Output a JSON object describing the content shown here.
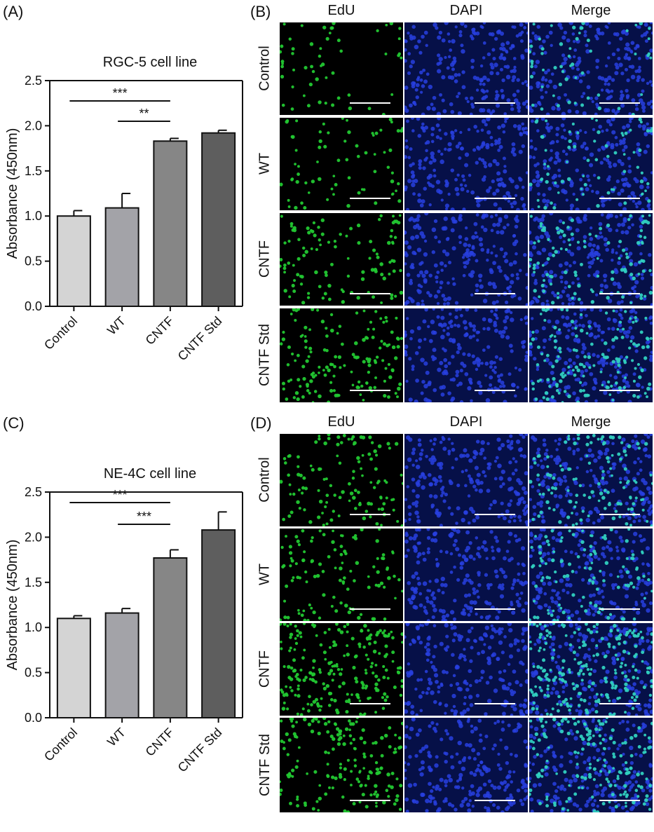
{
  "panels": {
    "a": {
      "label": "(A)"
    },
    "b": {
      "label": "(B)"
    },
    "c": {
      "label": "(C)"
    },
    "d": {
      "label": "(D)"
    }
  },
  "chart_data": [
    {
      "type": "bar",
      "title": "RGC-5 cell line",
      "ylabel": "Absorbance (450nm)",
      "xlabel": "",
      "categories": [
        "Control",
        "WT",
        "CNTF",
        "CNTF Std"
      ],
      "values": [
        1.0,
        1.09,
        1.83,
        1.92
      ],
      "errors": [
        0.06,
        0.16,
        0.03,
        0.03
      ],
      "ylim": [
        0,
        2.5
      ],
      "yticks": [
        "0.0",
        "0.5",
        "1.0",
        "1.5",
        "2.0",
        "2.5"
      ],
      "bar_colors": [
        "#d4d4d4",
        "#a3a3a8",
        "#868686",
        "#5e5e5e"
      ],
      "significance": [
        {
          "from": "Control",
          "to": "CNTF",
          "label": "***"
        },
        {
          "from": "WT",
          "to": "CNTF",
          "label": "**"
        }
      ]
    },
    {
      "type": "bar",
      "title": "NE-4C cell line",
      "ylabel": "Absorbance (450nm)",
      "xlabel": "",
      "categories": [
        "Control",
        "WT",
        "CNTF",
        "CNTF Std"
      ],
      "values": [
        1.1,
        1.16,
        1.77,
        2.08
      ],
      "errors": [
        0.03,
        0.05,
        0.09,
        0.2
      ],
      "ylim": [
        0,
        2.5
      ],
      "yticks": [
        "0.0",
        "0.5",
        "1.0",
        "1.5",
        "2.0",
        "2.5"
      ],
      "bar_colors": [
        "#d4d4d4",
        "#a3a3a8",
        "#868686",
        "#5e5e5e"
      ],
      "significance": [
        {
          "from": "Control",
          "to": "CNTF",
          "label": "***"
        },
        {
          "from": "WT",
          "to": "CNTF",
          "label": "***"
        }
      ]
    }
  ],
  "micrographs": {
    "b": {
      "columns": [
        "EdU",
        "DAPI",
        "Merge"
      ],
      "rows": [
        "Control",
        "WT",
        "CNTF",
        "CNTF Std"
      ]
    },
    "d": {
      "columns": [
        "EdU",
        "DAPI",
        "Merge"
      ],
      "rows": [
        "Control",
        "WT",
        "CNTF",
        "CNTF Std"
      ]
    }
  },
  "colors": {
    "edu": "#22c832",
    "dapi": "#2840e0",
    "merge_cell": "#30d0c0",
    "background": "#000000"
  }
}
